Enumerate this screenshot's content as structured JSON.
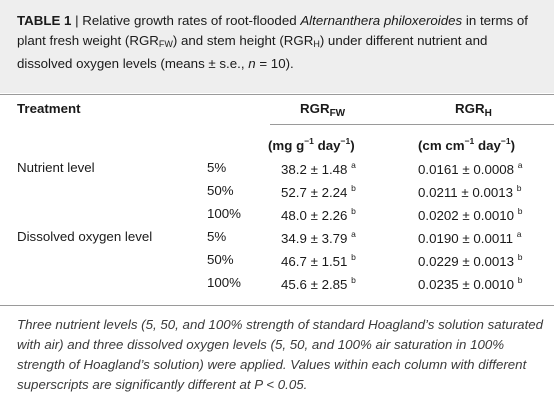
{
  "caption": {
    "label": "TABLE 1",
    "sep": " | ",
    "t1": "Relative growth rates of root-flooded ",
    "species": "Alternanthera philoxeroides",
    "t2": " in terms of plant fresh weight (RGR",
    "fw_sub": "FW",
    "t3": ") and stem height (RGR",
    "h_sub": "H",
    "t4": ") under different nutrient and dissolved oxygen levels (means ± s.e., ",
    "n_var": "n",
    "t5": " = 10)."
  },
  "header": {
    "treatment": "Treatment",
    "rgr": "RGR",
    "fw_sub": "FW",
    "h_sub": "H",
    "unit_fw_a": "(mg g",
    "unit_fw_exp": "−1",
    "unit_fw_b": " day",
    "unit_fw_exp2": "−1",
    "unit_fw_c": ")",
    "unit_h_a": "(cm cm",
    "unit_h_exp": "−1",
    "unit_h_b": " day",
    "unit_h_exp2": "−1",
    "unit_h_c": ")"
  },
  "rows": [
    {
      "group": "Nutrient level",
      "level": "5%",
      "fw": "38.2 ± 1.48",
      "fw_sup": "a",
      "h": "0.0161 ± 0.0008",
      "h_sup": "a"
    },
    {
      "group": "",
      "level": "50%",
      "fw": "52.7 ± 2.24",
      "fw_sup": "b",
      "h": "0.0211 ± 0.0013",
      "h_sup": "b"
    },
    {
      "group": "",
      "level": "100%",
      "fw": "48.0 ± 2.26",
      "fw_sup": "b",
      "h": "0.0202 ± 0.0010",
      "h_sup": "b"
    },
    {
      "group": "Dissolved oxygen level",
      "level": "5%",
      "fw": "34.9 ±  3.79",
      "fw_sup": "a",
      "h": "0.0190 ± 0.0011",
      "h_sup": "a"
    },
    {
      "group": "",
      "level": "50%",
      "fw": "46.7 ±  1.51",
      "fw_sup": "b",
      "h": "0.0229 ± 0.0013",
      "h_sup": "b"
    },
    {
      "group": "",
      "level": "100%",
      "fw": "45.6 ±  2.85",
      "fw_sup": "b",
      "h": "0.0235 ± 0.0010",
      "h_sup": "b"
    }
  ],
  "footnote": "Three nutrient levels (5, 50, and 100% strength of standard Hoagland’s solution saturated with air) and three dissolved oxygen levels (5, 50, and 100% air saturation in 100% strength of Hoagland’s solution) were applied. Values within each column with different superscripts are significantly different at P < 0.05."
}
